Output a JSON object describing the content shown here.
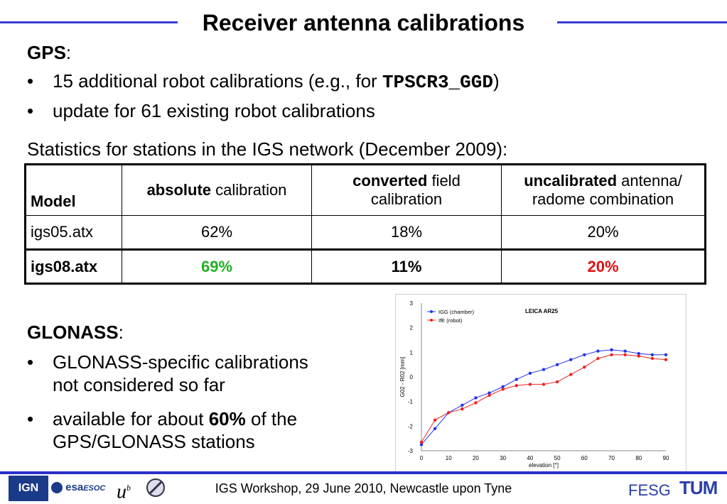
{
  "title": "Receiver antenna calibrations",
  "gps": {
    "heading": "GPS",
    "colon": ":",
    "bullet1_prefix": "15 additional robot calibrations (e.g., for ",
    "bullet1_code": "TPSCR3_GGD",
    "bullet1_suffix": ")",
    "bullet2": "update for 61 existing robot calibrations"
  },
  "stats_intro": "Statistics for stations in the IGS network (December 2009):",
  "table": {
    "header_model": "Model",
    "header_abs_bold": "absolute",
    "header_abs_rest": " calibration",
    "header_conv_bold": "converted",
    "header_conv_rest1": " field",
    "header_conv_rest2": "calibration",
    "header_uncal_bold": "uncalibrated",
    "header_uncal_rest1": " antenna/",
    "header_uncal_rest2": "radome combination",
    "rows": [
      {
        "model": "igs05.atx",
        "absolute": "62%",
        "converted": "18%",
        "uncalibrated": "20%"
      },
      {
        "model": "igs08.atx",
        "absolute": "69%",
        "converted": "11%",
        "uncalibrated": "20%"
      }
    ]
  },
  "glonass": {
    "heading": "GLONASS",
    "colon": ":",
    "bullet1_line1": "GLONASS-specific calibrations",
    "bullet1_line2": "not considered so far",
    "bullet2_prefix": "available for about ",
    "bullet2_bold": "60%",
    "bullet2_suffix": " of the",
    "bullet2_line2": "GPS/GLONASS stations"
  },
  "bullet_char": "•",
  "footer": {
    "text": "IGS Workshop, 29 June 2010, Newcastle upon Tyne",
    "fesg": "FESG",
    "tum": "TUM",
    "ign": "IGN",
    "esa": "esa",
    "esoc": "ESOC",
    "ub": "u"
  },
  "colors": {
    "accent": "#3a3fd6",
    "green": "#22b022",
    "red": "#e01010",
    "series_igg": "#2233ee",
    "series_ife": "#ee2222"
  },
  "chart_data": {
    "type": "line",
    "title": "LEICA AR25",
    "xlabel": "elevation [°]",
    "ylabel": "G02 - R02 [mm]",
    "xlim": [
      0,
      90
    ],
    "ylim": [
      -3,
      3
    ],
    "xticks": [
      0,
      10,
      20,
      30,
      40,
      50,
      60,
      70,
      80,
      90
    ],
    "yticks": [
      -3,
      -2,
      -1,
      0,
      1,
      2,
      3
    ],
    "legend_position": "top-left",
    "x": [
      0,
      5,
      10,
      15,
      20,
      25,
      30,
      35,
      40,
      45,
      50,
      55,
      60,
      65,
      70,
      75,
      80,
      85,
      90
    ],
    "series": [
      {
        "name": "IGG (chamber)",
        "color": "#2233ee",
        "values": [
          -2.75,
          -2.1,
          -1.45,
          -1.15,
          -0.85,
          -0.65,
          -0.4,
          -0.1,
          0.15,
          0.3,
          0.5,
          0.7,
          0.9,
          1.05,
          1.1,
          1.05,
          0.95,
          0.9,
          0.9
        ]
      },
      {
        "name": "IfE (robot)",
        "color": "#ee2222",
        "values": [
          -2.65,
          -1.75,
          -1.45,
          -1.3,
          -1.05,
          -0.75,
          -0.5,
          -0.35,
          -0.3,
          -0.3,
          -0.2,
          0.1,
          0.4,
          0.75,
          0.9,
          0.9,
          0.85,
          0.75,
          0.7
        ]
      }
    ]
  }
}
